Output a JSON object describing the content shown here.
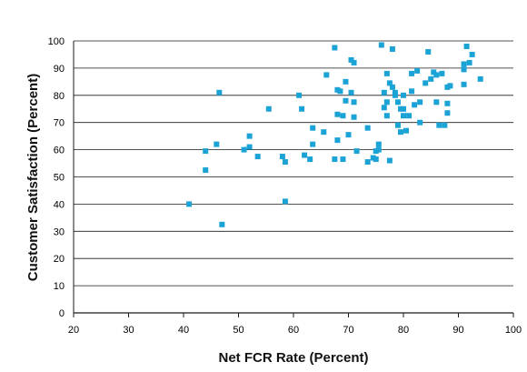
{
  "chart_data": {
    "type": "scatter",
    "title": "",
    "xlabel": "Net FCR Rate (Percent)",
    "ylabel": "Customer Satisfaction (Percent)",
    "xlim": [
      20,
      100
    ],
    "ylim": [
      0,
      100
    ],
    "xticks": [
      20,
      30,
      40,
      50,
      60,
      70,
      80,
      90,
      100
    ],
    "yticks": [
      0,
      10,
      20,
      30,
      40,
      50,
      60,
      70,
      80,
      90,
      100
    ],
    "grid": "horizontal",
    "marker_color": "#1ba3d6",
    "series": [
      {
        "points": [
          [
            41,
            40
          ],
          [
            44,
            52.5
          ],
          [
            44,
            59.5
          ],
          [
            46,
            62
          ],
          [
            46.5,
            81
          ],
          [
            47,
            32.5
          ],
          [
            51,
            60
          ],
          [
            52,
            65
          ],
          [
            52,
            61
          ],
          [
            53.5,
            57.5
          ],
          [
            55.5,
            75
          ],
          [
            58,
            57.5
          ],
          [
            58.5,
            55.5
          ],
          [
            58.5,
            41
          ],
          [
            61,
            80
          ],
          [
            61.5,
            75
          ],
          [
            62,
            58
          ],
          [
            63,
            56.5
          ],
          [
            63.5,
            68
          ],
          [
            63.5,
            62
          ],
          [
            65.5,
            66.5
          ],
          [
            66,
            87.5
          ],
          [
            67.5,
            97.5
          ],
          [
            67.5,
            56.5
          ],
          [
            68,
            82
          ],
          [
            68,
            73
          ],
          [
            68,
            63.5
          ],
          [
            68.5,
            81.5
          ],
          [
            69,
            56.5
          ],
          [
            69,
            72.5
          ],
          [
            69.5,
            85
          ],
          [
            69.5,
            78
          ],
          [
            70,
            65.5
          ],
          [
            70.5,
            81
          ],
          [
            70.5,
            93
          ],
          [
            71,
            92
          ],
          [
            71,
            72
          ],
          [
            71,
            77.5
          ],
          [
            71.5,
            59.5
          ],
          [
            73.5,
            68
          ],
          [
            73.5,
            55.5
          ],
          [
            74.5,
            57
          ],
          [
            75,
            59.5
          ],
          [
            75,
            56.5
          ],
          [
            75.5,
            62
          ],
          [
            75.5,
            60
          ],
          [
            76,
            98.5
          ],
          [
            76.5,
            81
          ],
          [
            76.5,
            75.5
          ],
          [
            77,
            88
          ],
          [
            77,
            72.5
          ],
          [
            77,
            77.5
          ],
          [
            77.5,
            84.5
          ],
          [
            77.5,
            56
          ],
          [
            78,
            97
          ],
          [
            78,
            83
          ],
          [
            78.5,
            81
          ],
          [
            78.5,
            80
          ],
          [
            79,
            77.5
          ],
          [
            79,
            69
          ],
          [
            79.5,
            75
          ],
          [
            79.5,
            66.5
          ],
          [
            80,
            80
          ],
          [
            80,
            75
          ],
          [
            80,
            72.5
          ],
          [
            80.5,
            67
          ],
          [
            81,
            72.5
          ],
          [
            81.5,
            88
          ],
          [
            81.5,
            81.5
          ],
          [
            82,
            76.5
          ],
          [
            82.5,
            89
          ],
          [
            83,
            70
          ],
          [
            83,
            77.5
          ],
          [
            84,
            84.5
          ],
          [
            84.5,
            96
          ],
          [
            85,
            86
          ],
          [
            85.5,
            88.5
          ],
          [
            86,
            77.5
          ],
          [
            86,
            87.5
          ],
          [
            86.5,
            69
          ],
          [
            87,
            88
          ],
          [
            87.5,
            69
          ],
          [
            88,
            83
          ],
          [
            88,
            77
          ],
          [
            88,
            73.5
          ],
          [
            88.5,
            83.5
          ],
          [
            91,
            91.5
          ],
          [
            91,
            89.5
          ],
          [
            91,
            84
          ],
          [
            91.5,
            98
          ],
          [
            92,
            92
          ],
          [
            92.5,
            95
          ],
          [
            94,
            86
          ]
        ]
      }
    ]
  }
}
